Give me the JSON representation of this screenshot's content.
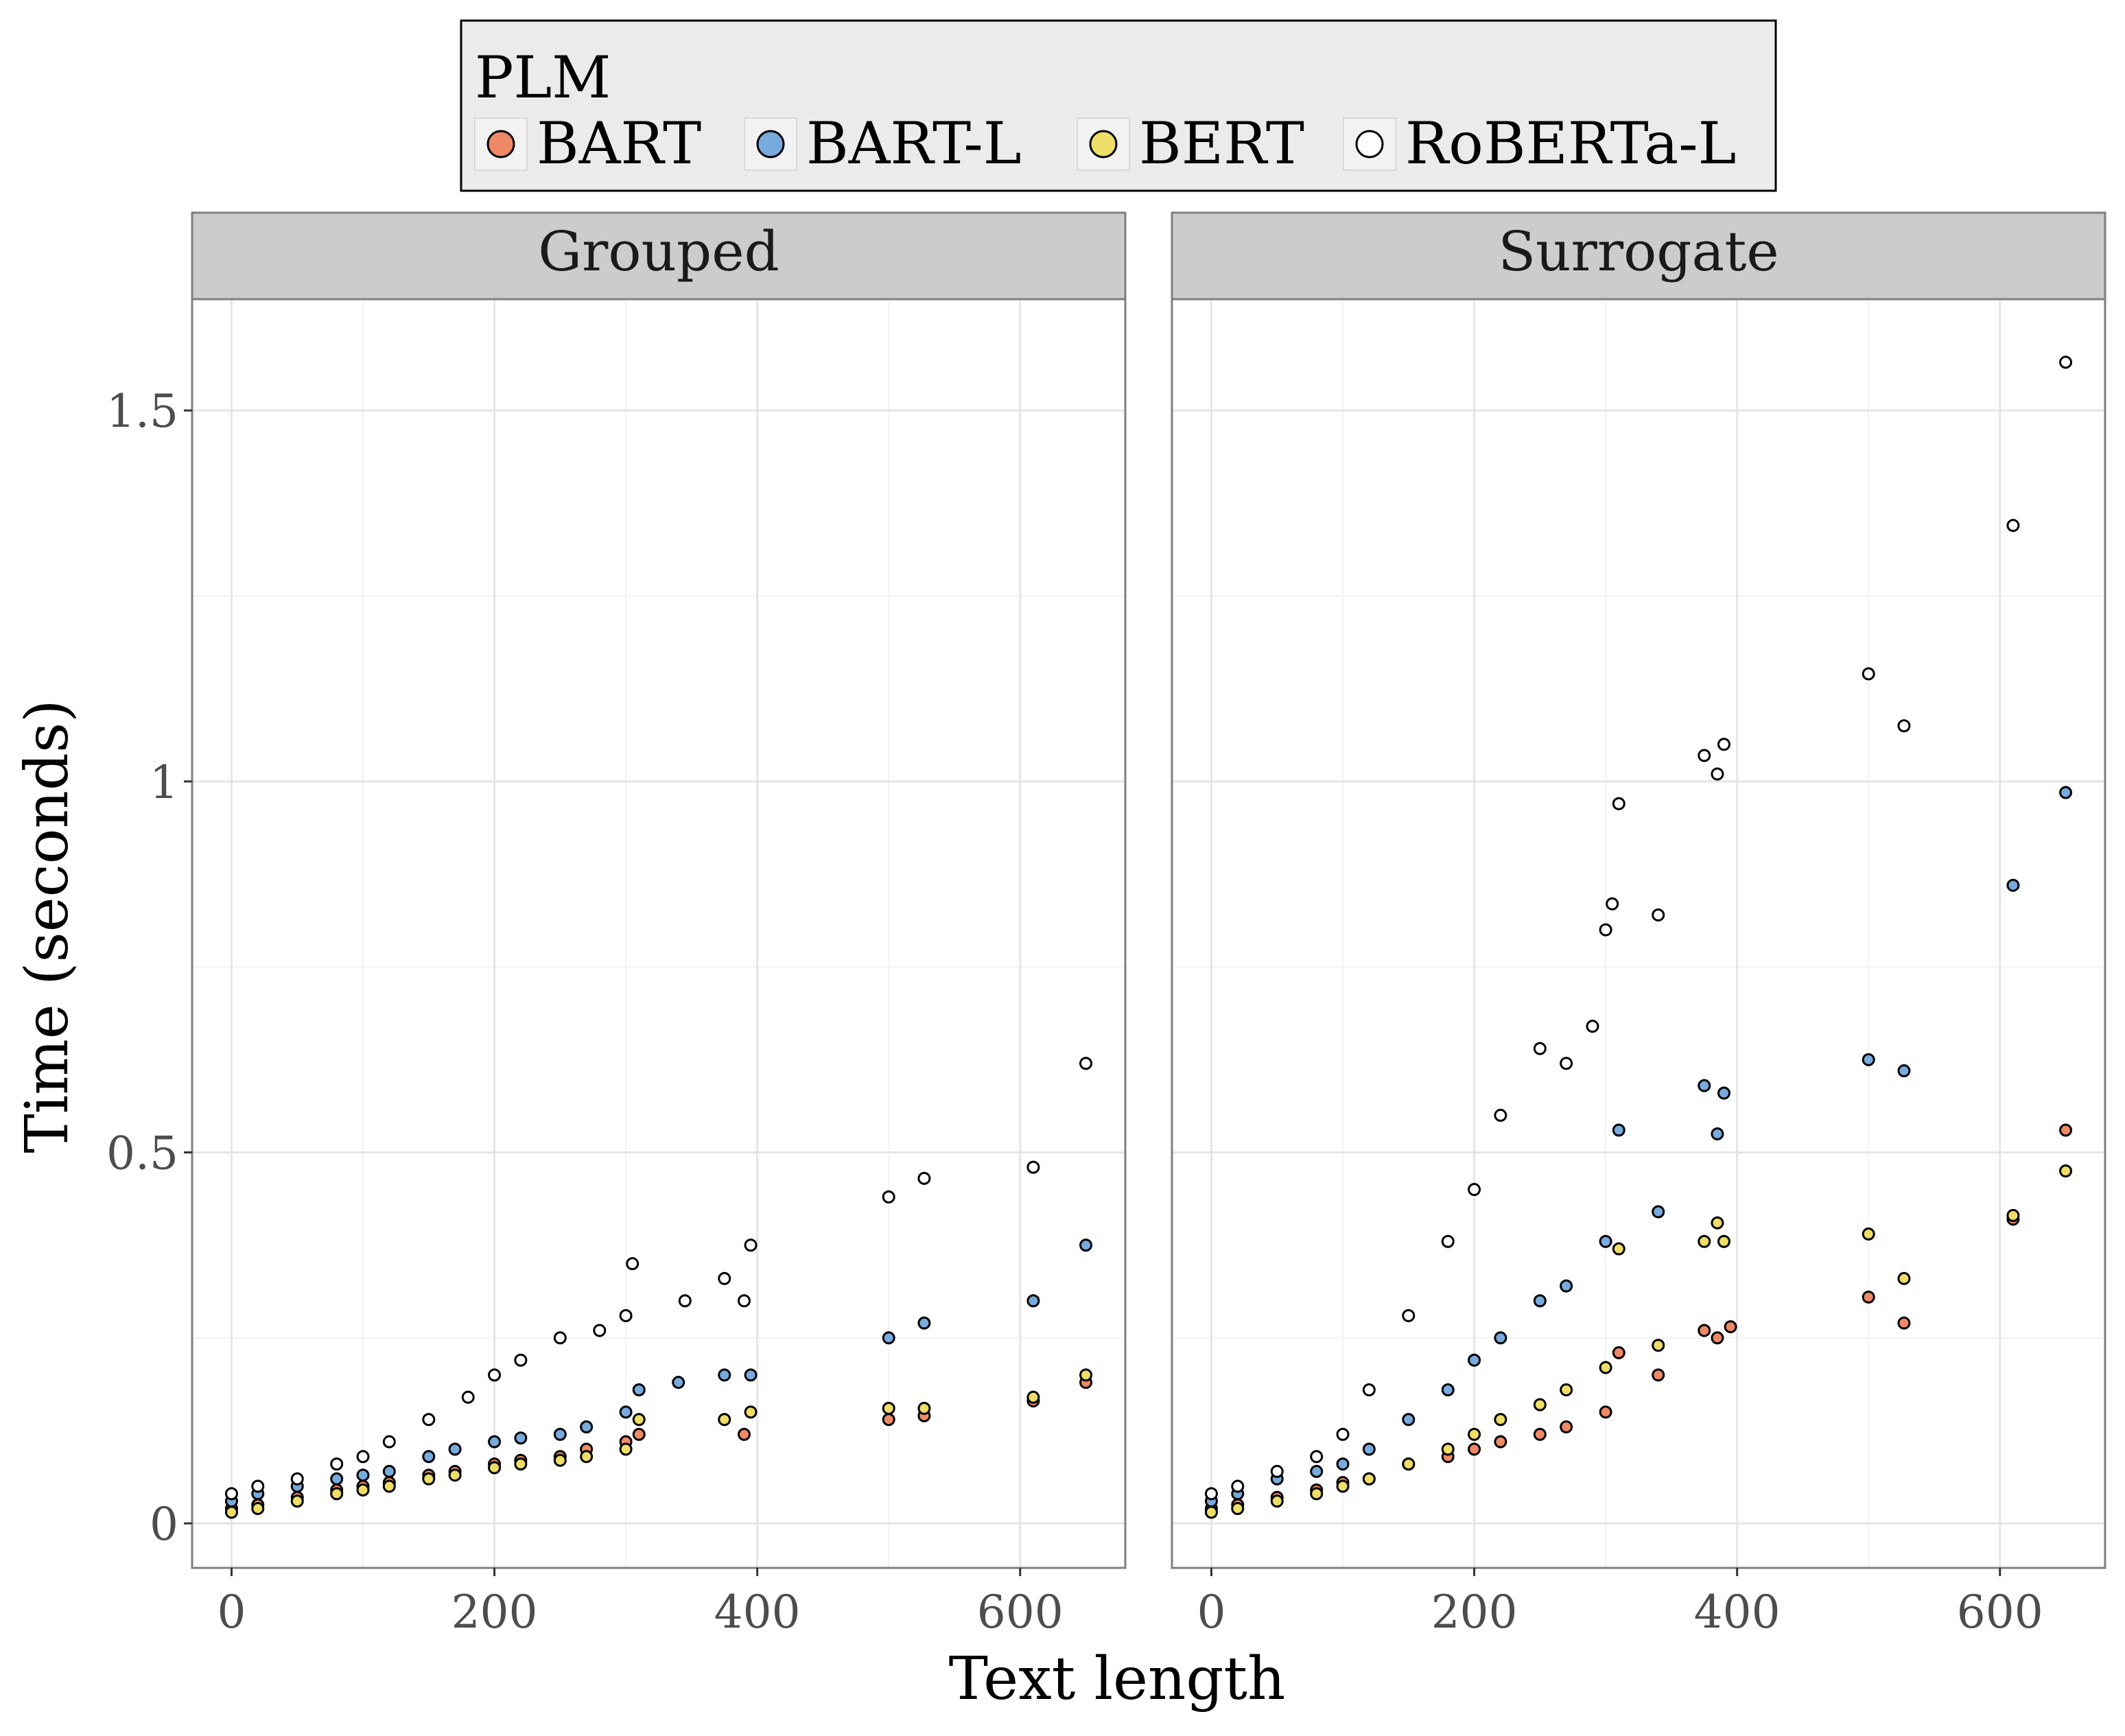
{
  "chart_data": {
    "type": "scatter",
    "xlabel": "Text length",
    "ylabel": "Time (seconds)",
    "xlim": [
      -30,
      680
    ],
    "ylim": [
      -0.06,
      1.65
    ],
    "x_ticks": [
      0,
      200,
      400,
      600
    ],
    "x_tick_labels": [
      "0",
      "200",
      "400",
      "600"
    ],
    "y_ticks": [
      0,
      0.5,
      1,
      1.5
    ],
    "y_tick_labels": [
      "0",
      "0.5",
      "1",
      "1.5"
    ],
    "grid": true,
    "legend": {
      "title": "PLM",
      "position": "top",
      "entries": [
        {
          "label": "BART",
          "color": "#EE8866"
        },
        {
          "label": "BART-L",
          "color": "#77AADD"
        },
        {
          "label": "BERT",
          "color": "#EEDD66"
        },
        {
          "label": "RoBERTa-L",
          "color": "#FFFFFF"
        }
      ]
    },
    "panels": [
      {
        "title": "Grouped",
        "series": [
          {
            "name": "BART",
            "x": [
              0,
              20,
              50,
              80,
              100,
              120,
              150,
              170,
              200,
              220,
              250,
              270,
              300,
              310,
              390,
              500,
              527,
              610,
              650
            ],
            "y": [
              0.02,
              0.025,
              0.035,
              0.045,
              0.05,
              0.055,
              0.065,
              0.07,
              0.08,
              0.085,
              0.09,
              0.1,
              0.11,
              0.12,
              0.12,
              0.14,
              0.145,
              0.165,
              0.19
            ]
          },
          {
            "name": "BART-L",
            "x": [
              0,
              20,
              50,
              80,
              100,
              120,
              150,
              170,
              200,
              220,
              250,
              270,
              300,
              310,
              340,
              375,
              395,
              500,
              527,
              610,
              650
            ],
            "y": [
              0.03,
              0.04,
              0.05,
              0.06,
              0.065,
              0.07,
              0.09,
              0.1,
              0.11,
              0.115,
              0.12,
              0.13,
              0.15,
              0.18,
              0.19,
              0.2,
              0.2,
              0.25,
              0.27,
              0.3,
              0.375
            ]
          },
          {
            "name": "BERT",
            "x": [
              0,
              20,
              50,
              80,
              100,
              120,
              150,
              170,
              200,
              220,
              250,
              270,
              300,
              310,
              375,
              395,
              500,
              527,
              610,
              650
            ],
            "y": [
              0.015,
              0.02,
              0.03,
              0.04,
              0.045,
              0.05,
              0.06,
              0.065,
              0.075,
              0.08,
              0.085,
              0.09,
              0.1,
              0.14,
              0.14,
              0.15,
              0.155,
              0.155,
              0.17,
              0.2
            ]
          },
          {
            "name": "RoBERTa-L",
            "x": [
              0,
              20,
              50,
              80,
              100,
              120,
              150,
              180,
              200,
              220,
              250,
              280,
              300,
              305,
              345,
              375,
              390,
              395,
              500,
              527,
              610,
              650
            ],
            "y": [
              0.04,
              0.05,
              0.06,
              0.08,
              0.09,
              0.11,
              0.14,
              0.17,
              0.2,
              0.22,
              0.25,
              0.26,
              0.28,
              0.35,
              0.3,
              0.33,
              0.3,
              0.375,
              0.44,
              0.465,
              0.48,
              0.62
            ]
          }
        ]
      },
      {
        "title": "Surrogate",
        "series": [
          {
            "name": "BART",
            "x": [
              0,
              20,
              50,
              80,
              100,
              120,
              150,
              180,
              200,
              220,
              250,
              270,
              300,
              310,
              340,
              375,
              385,
              395,
              500,
              527,
              610,
              650
            ],
            "y": [
              0.02,
              0.025,
              0.035,
              0.045,
              0.055,
              0.06,
              0.08,
              0.09,
              0.1,
              0.11,
              0.12,
              0.13,
              0.15,
              0.23,
              0.2,
              0.26,
              0.25,
              0.265,
              0.305,
              0.27,
              0.41,
              0.53
            ]
          },
          {
            "name": "BART-L",
            "x": [
              0,
              20,
              50,
              80,
              100,
              120,
              150,
              180,
              200,
              220,
              250,
              270,
              300,
              310,
              340,
              375,
              385,
              390,
              500,
              527,
              610,
              650
            ],
            "y": [
              0.03,
              0.04,
              0.06,
              0.07,
              0.08,
              0.1,
              0.14,
              0.18,
              0.22,
              0.25,
              0.3,
              0.32,
              0.38,
              0.53,
              0.42,
              0.59,
              0.525,
              0.58,
              0.625,
              0.61,
              0.86,
              0.985
            ]
          },
          {
            "name": "BERT",
            "x": [
              0,
              20,
              50,
              80,
              100,
              120,
              150,
              180,
              200,
              220,
              250,
              270,
              300,
              310,
              340,
              375,
              385,
              390,
              500,
              527,
              610,
              650
            ],
            "y": [
              0.015,
              0.02,
              0.03,
              0.04,
              0.05,
              0.06,
              0.08,
              0.1,
              0.12,
              0.14,
              0.16,
              0.18,
              0.21,
              0.37,
              0.24,
              0.38,
              0.405,
              0.38,
              0.39,
              0.33,
              0.415,
              0.475
            ]
          },
          {
            "name": "RoBERTa-L",
            "x": [
              0,
              20,
              50,
              80,
              100,
              120,
              150,
              180,
              200,
              220,
              250,
              270,
              290,
              300,
              305,
              310,
              340,
              375,
              385,
              390,
              500,
              527,
              610,
              650
            ],
            "y": [
              0.04,
              0.05,
              0.07,
              0.09,
              0.12,
              0.18,
              0.28,
              0.38,
              0.45,
              0.55,
              0.64,
              0.62,
              0.67,
              0.8,
              0.835,
              0.97,
              0.82,
              1.035,
              1.01,
              1.05,
              1.145,
              1.075,
              1.345,
              1.565
            ]
          }
        ]
      }
    ]
  }
}
